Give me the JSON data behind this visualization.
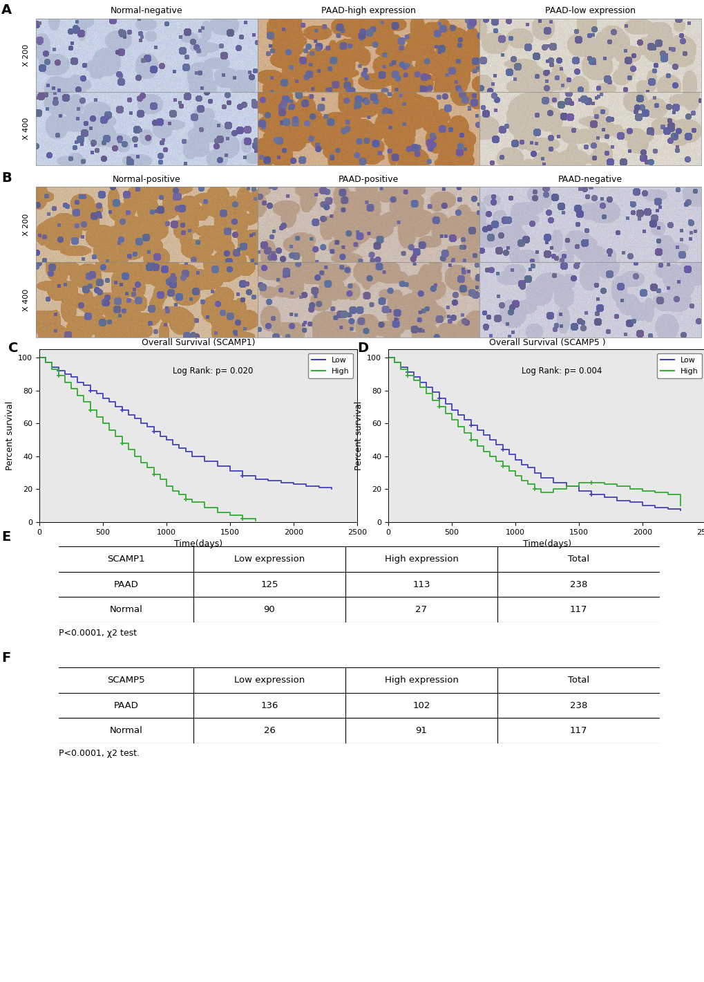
{
  "panel_A_labels": [
    "Normal-negative",
    "PAAD-high expression",
    "PAAD-low expression"
  ],
  "panel_B_labels": [
    "Normal-positive",
    "PAAD-positive",
    "PAAD-negative"
  ],
  "mag_labels_A": [
    "X 200",
    "X 400"
  ],
  "mag_labels_B": [
    "X 200",
    "X 400"
  ],
  "panel_C_title": "Overall Survival (SCAMP1)",
  "panel_D_title": "Overall Survival (SCAMP5 )",
  "panel_C_logrank": "Log Rank: p= 0.020",
  "panel_D_logrank": "Log Rank: p= 0.004",
  "xlabel": "Time(days)",
  "ylabel": "Percent survival",
  "xmax": 2500,
  "yticks": [
    0,
    20,
    40,
    60,
    80,
    100
  ],
  "xticks": [
    0,
    500,
    1000,
    1500,
    2000,
    2500
  ],
  "legend_low": "Low",
  "legend_high": "High",
  "low_color": "#4040bb",
  "high_color": "#33aa33",
  "bg_color": "#e8e8e8",
  "scamp1_low_times": [
    0,
    50,
    100,
    150,
    200,
    250,
    300,
    350,
    400,
    450,
    500,
    550,
    600,
    650,
    700,
    750,
    800,
    850,
    900,
    950,
    1000,
    1050,
    1100,
    1150,
    1200,
    1300,
    1400,
    1500,
    1600,
    1700,
    1800,
    1900,
    2000,
    2100,
    2200,
    2300
  ],
  "scamp1_low_surv": [
    100,
    97,
    94,
    92,
    90,
    88,
    85,
    83,
    80,
    78,
    75,
    73,
    70,
    68,
    65,
    63,
    60,
    58,
    55,
    52,
    50,
    47,
    45,
    43,
    40,
    37,
    34,
    31,
    28,
    26,
    25,
    24,
    23,
    22,
    21,
    20
  ],
  "scamp1_low_censor": [
    3,
    8,
    13,
    18,
    28,
    38
  ],
  "scamp1_high_times": [
    0,
    50,
    100,
    150,
    200,
    250,
    300,
    350,
    400,
    450,
    500,
    550,
    600,
    650,
    700,
    750,
    800,
    850,
    900,
    950,
    1000,
    1050,
    1100,
    1150,
    1200,
    1300,
    1400,
    1500,
    1600,
    1700
  ],
  "scamp1_high_surv": [
    100,
    97,
    93,
    89,
    85,
    81,
    77,
    73,
    68,
    64,
    60,
    56,
    52,
    48,
    44,
    40,
    36,
    33,
    29,
    26,
    22,
    19,
    17,
    14,
    12,
    9,
    6,
    4,
    2,
    1
  ],
  "scamp1_high_censor": [
    3,
    8,
    13,
    18,
    23,
    28
  ],
  "scamp5_low_times": [
    0,
    50,
    100,
    150,
    200,
    250,
    300,
    350,
    400,
    450,
    500,
    550,
    600,
    650,
    700,
    750,
    800,
    850,
    900,
    950,
    1000,
    1050,
    1100,
    1150,
    1200,
    1300,
    1400,
    1500,
    1600,
    1700,
    1800,
    1900,
    2000,
    2100,
    2200,
    2300
  ],
  "scamp5_low_surv": [
    100,
    97,
    94,
    91,
    88,
    85,
    82,
    79,
    75,
    72,
    68,
    65,
    62,
    59,
    56,
    53,
    50,
    47,
    44,
    41,
    38,
    35,
    33,
    30,
    27,
    24,
    22,
    19,
    17,
    15,
    13,
    12,
    10,
    9,
    8,
    7
  ],
  "scamp5_low_censor": [
    3,
    8,
    13,
    18,
    28,
    38
  ],
  "scamp5_high_times": [
    0,
    50,
    100,
    150,
    200,
    250,
    300,
    350,
    400,
    450,
    500,
    550,
    600,
    650,
    700,
    750,
    800,
    850,
    900,
    950,
    1000,
    1050,
    1100,
    1150,
    1200,
    1300,
    1400,
    1500,
    1600,
    1700,
    1800,
    1900,
    2000,
    2100,
    2200,
    2300
  ],
  "scamp5_high_surv": [
    100,
    97,
    93,
    89,
    86,
    82,
    78,
    74,
    70,
    66,
    62,
    58,
    54,
    50,
    46,
    43,
    40,
    37,
    34,
    31,
    28,
    25,
    23,
    20,
    18,
    20,
    22,
    24,
    24,
    23,
    22,
    20,
    19,
    18,
    17,
    10
  ],
  "scamp5_high_censor": [
    3,
    8,
    13,
    18,
    23,
    28,
    38
  ],
  "table_E_header": [
    "SCAMP1",
    "Low expression",
    "High expression",
    "Total"
  ],
  "table_E_row1": [
    "PAAD",
    "125",
    "113",
    "238"
  ],
  "table_E_row2": [
    "Normal",
    "90",
    "27",
    "117"
  ],
  "table_E_note": "P<0.0001, χ2 test",
  "table_F_header": [
    "SCAMP5",
    "Low expression",
    "High expression",
    "Total"
  ],
  "table_F_row1": [
    "PAAD",
    "136",
    "102",
    "238"
  ],
  "table_F_row2": [
    "Normal",
    "26",
    "91",
    "117"
  ],
  "table_F_note": "P<0.0001, χ2 test.",
  "img_A": {
    "normal_neg": {
      "base": [
        200,
        210,
        230
      ],
      "cell_color": [
        160,
        170,
        195
      ],
      "stain": 0.0
    },
    "paad_high": {
      "base": [
        210,
        175,
        140
      ],
      "cell_color": [
        180,
        120,
        60
      ],
      "stain": 0.9
    },
    "paad_low": {
      "base": [
        220,
        215,
        205
      ],
      "cell_color": [
        190,
        175,
        155
      ],
      "stain": 0.2
    }
  },
  "img_B": {
    "normal_pos": {
      "base": [
        210,
        185,
        155
      ],
      "cell_color": [
        180,
        130,
        70
      ],
      "stain": 0.7
    },
    "paad_pos": {
      "base": [
        205,
        190,
        180
      ],
      "cell_color": [
        175,
        145,
        120
      ],
      "stain": 0.4
    },
    "paad_neg": {
      "base": [
        205,
        205,
        220
      ],
      "cell_color": [
        170,
        170,
        195
      ],
      "stain": 0.0
    }
  }
}
